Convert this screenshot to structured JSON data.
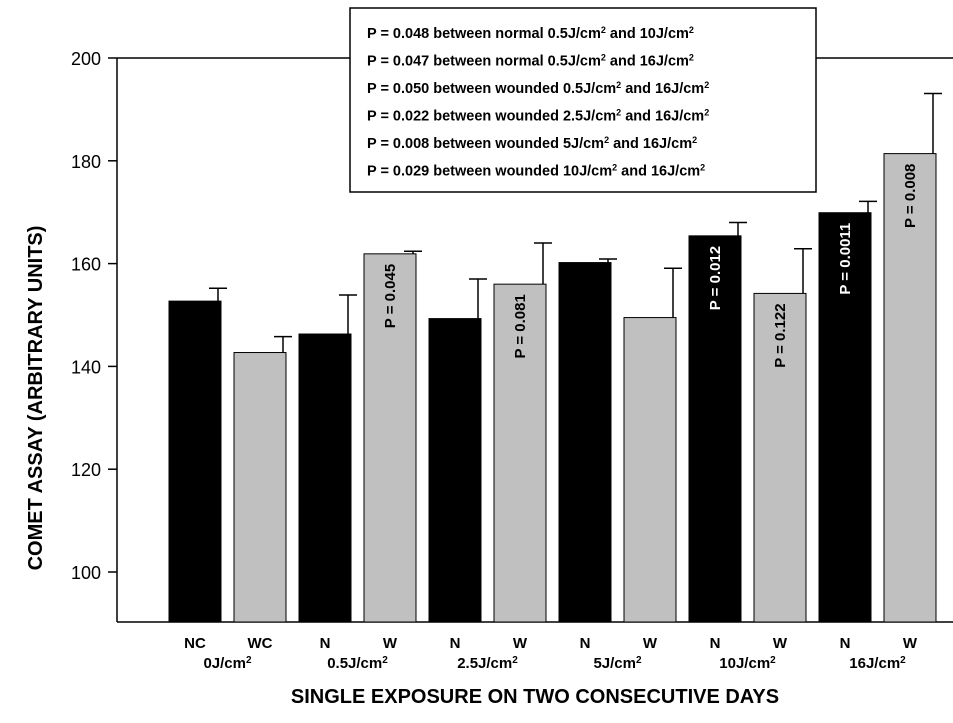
{
  "chart_data": {
    "type": "bar",
    "title": "",
    "xlabel": "SINGLE EXPOSURE ON TWO CONSECUTIVE DAYS",
    "ylabel": "COMET ASSAY (ARBITRARY UNITS)",
    "ylim": [
      90,
      200
    ],
    "yticks": [
      100,
      120,
      140,
      160,
      180,
      200
    ],
    "grid": false,
    "legend": "none",
    "categories": [
      "NC",
      "WC",
      "N",
      "W",
      "N",
      "W",
      "N",
      "W",
      "N",
      "W",
      "N",
      "W"
    ],
    "groups": [
      "0J/cm²",
      "0.5J/cm²",
      "2.5J/cm²",
      "5J/cm²",
      "10J/cm²",
      "16J/cm²"
    ],
    "values": [
      152.7,
      142.7,
      146.3,
      161.9,
      149.3,
      156.0,
      160.2,
      149.5,
      165.4,
      154.2,
      169.9,
      181.4
    ],
    "errors": [
      2.5,
      3.1,
      7.6,
      0.5,
      7.7,
      8.0,
      0.7,
      9.6,
      2.6,
      8.7,
      2.2,
      11.7
    ],
    "bar_labels": [
      "",
      "",
      "",
      "P = 0.045",
      "",
      "P = 0.081",
      "",
      "",
      "P = 0.012",
      "P = 0.122",
      "P = 0.0011",
      "P = 0.008"
    ],
    "colors": {
      "normal": "#000000",
      "wounded": "#c0c0c0",
      "axis": "#000000"
    },
    "annotations": [
      "P = 0.048 between normal 0.5J/cm² and 10J/cm²",
      "P = 0.047 between normal 0.5J/cm² and 16J/cm²",
      "P = 0.050 between wounded 0.5J/cm² and 16J/cm²",
      "P = 0.022 between wounded 2.5J/cm² and 16J/cm²",
      "P = 0.008 between wounded 5J/cm² and 16J/cm²",
      "P = 0.029 between wounded 10J/cm² and 16J/cm²"
    ]
  }
}
